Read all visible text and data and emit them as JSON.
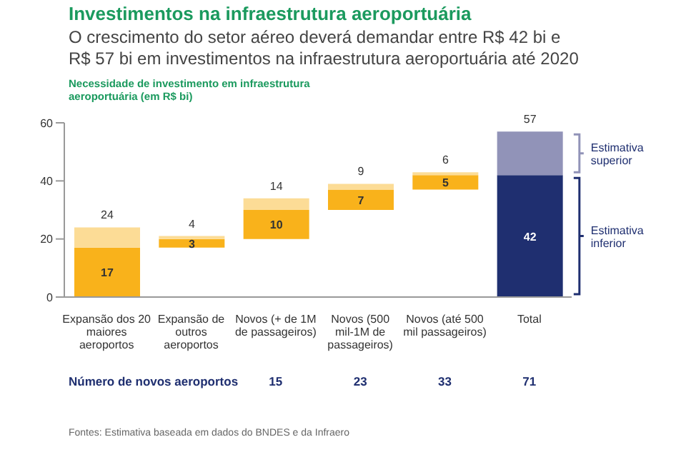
{
  "chart_data": {
    "type": "bar",
    "title": "Investimentos na infraestrutura aeroportuária",
    "subtitle": "O crescimento do setor aéreo deverá demandar entre R$ 42 bi e R$ 57 bi em investimentos na infraestrutura aeroportuária até 2020",
    "ylabel": "Necessidade de investimento em infraestrutura aeroportuária (em R$ bi)",
    "categories": [
      "Expansão dos 20 maiores aeroportos",
      "Expansão de outros aeroportos",
      "Novos (+ de 1M de passageiros)",
      "Novos (500 mil-1M de passageiros)",
      "Novos (até 500 mil passageiros)",
      "Total"
    ],
    "legend": "right",
    "series": [
      {
        "name": "Estimativa inferior",
        "colors": [
          "#f9b21b",
          "#f9b21b",
          "#f9b21b",
          "#f9b21b",
          "#f9b21b",
          "#1f2f70"
        ],
        "base": [
          0,
          17,
          20,
          30,
          37,
          0
        ],
        "values": [
          17,
          3,
          10,
          7,
          5,
          42
        ],
        "value_labels": [
          "17",
          "3",
          "10",
          "7",
          "5",
          "42"
        ]
      },
      {
        "name": "Estimativa superior",
        "colors": [
          "#fcdc96",
          "#fcdc96",
          "#fcdc96",
          "#fcdc96",
          "#fcdc96",
          "#9193b8"
        ],
        "base": [
          17,
          20,
          30,
          37,
          42,
          42
        ],
        "values": [
          7,
          1,
          4,
          2,
          1,
          15
        ]
      }
    ],
    "totals": [
      "24",
      "4",
      "14",
      "9",
      "6",
      "57"
    ],
    "ylim": [
      0,
      60
    ],
    "yticks": [
      0,
      20,
      40,
      60
    ],
    "annotations": [
      "Número de novos aeroportos",
      "15",
      "23",
      "33",
      "71",
      "Fontes: Estimativa baseada em dados do BNDES e da Infraero"
    ]
  }
}
